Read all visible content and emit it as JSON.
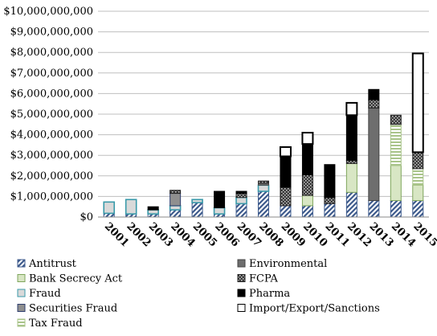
{
  "colors": {
    "antitrust": "#3d5a8c",
    "environmental": "#6e6e6e",
    "bank_secrecy_act": "#d8e6c4",
    "bank_secrecy_act_border": "#7fa65c",
    "fcpa": "#555555",
    "fraud": "#d9d9d9",
    "fraud_border": "#3a9aaa",
    "pharma": "#000000",
    "securities_fraud": "#8f8f8f",
    "securities_fraud_border": "#2f3f6f",
    "import_export_sanctions": "#ffffff",
    "tax_fraud": "#c8d8b4",
    "gridline": "#bfbfbf",
    "axis": "#888888"
  },
  "chart_data": {
    "type": "bar",
    "stacked": true,
    "categories": [
      "2001",
      "2002",
      "2003",
      "2004",
      "2005",
      "2006",
      "2007",
      "2008",
      "2009",
      "2010",
      "2011",
      "2012",
      "2013",
      "2014",
      "2015"
    ],
    "ylim": [
      0,
      10000000000
    ],
    "yticks": [
      0,
      1000000000,
      2000000000,
      3000000000,
      4000000000,
      5000000000,
      6000000000,
      7000000000,
      8000000000,
      9000000000,
      10000000000
    ],
    "ytick_labels": [
      "$0",
      "$1,000,000,000",
      "$2,000,000,000",
      "$3,000,000,000",
      "$4,000,000,000",
      "$5,000,000,000",
      "$6,000,000,000",
      "$7,000,000,000",
      "$8,000,000,000",
      "$9,000,000,000",
      "$10,000,000,000"
    ],
    "grid": true,
    "legend_position": "bottom",
    "series": [
      {
        "name": "Antitrust",
        "key": "antitrust",
        "values": [
          180000000,
          150000000,
          150000000,
          350000000,
          700000000,
          150000000,
          650000000,
          1250000000,
          550000000,
          550000000,
          650000000,
          1200000000,
          800000000,
          800000000,
          800000000
        ]
      },
      {
        "name": "Bank Secrecy Act",
        "key": "bank_secrecy_act",
        "values": [
          0,
          0,
          0,
          0,
          0,
          0,
          0,
          0,
          0,
          500000000,
          0,
          1400000000,
          0,
          1700000000,
          750000000
        ]
      },
      {
        "name": "Fraud",
        "key": "fraud",
        "values": [
          550000000,
          700000000,
          200000000,
          200000000,
          150000000,
          300000000,
          300000000,
          300000000,
          0,
          0,
          0,
          0,
          0,
          0,
          0
        ]
      },
      {
        "name": "Securities Fraud",
        "key": "securities_fraud",
        "values": [
          0,
          0,
          0,
          600000000,
          0,
          0,
          0,
          0,
          0,
          0,
          0,
          0,
          0,
          0,
          0
        ]
      },
      {
        "name": "Tax Fraud",
        "key": "tax_fraud",
        "values": [
          0,
          0,
          0,
          0,
          0,
          0,
          0,
          0,
          0,
          0,
          0,
          0,
          0,
          2000000000,
          800000000
        ]
      },
      {
        "name": "Environmental",
        "key": "environmental",
        "values": [
          0,
          0,
          0,
          0,
          0,
          0,
          0,
          100000000,
          0,
          0,
          0,
          0,
          4500000000,
          0,
          0
        ]
      },
      {
        "name": "FCPA",
        "key": "fcpa",
        "values": [
          0,
          0,
          0,
          150000000,
          0,
          0,
          200000000,
          100000000,
          900000000,
          1000000000,
          300000000,
          150000000,
          400000000,
          450000000,
          800000000
        ]
      },
      {
        "name": "Pharma",
        "key": "pharma",
        "values": [
          0,
          0,
          150000000,
          0,
          0,
          800000000,
          100000000,
          0,
          1500000000,
          1500000000,
          1600000000,
          2200000000,
          500000000,
          0,
          0
        ]
      },
      {
        "name": "Import/Export/Sanctions",
        "key": "import_export_sanctions",
        "values": [
          0,
          0,
          0,
          0,
          0,
          0,
          0,
          0,
          450000000,
          550000000,
          0,
          600000000,
          0,
          0,
          4800000000
        ]
      }
    ],
    "legend": [
      {
        "label": "Antitrust",
        "key": "antitrust"
      },
      {
        "label": "Environmental",
        "key": "environmental"
      },
      {
        "label": "Bank Secrecy Act",
        "key": "bank_secrecy_act"
      },
      {
        "label": "FCPA",
        "key": "fcpa"
      },
      {
        "label": "Fraud",
        "key": "fraud"
      },
      {
        "label": "Pharma",
        "key": "pharma"
      },
      {
        "label": "Securities Fraud",
        "key": "securities_fraud"
      },
      {
        "label": "Import/Export/Sanctions",
        "key": "import_export_sanctions"
      },
      {
        "label": "Tax Fraud",
        "key": "tax_fraud"
      }
    ]
  }
}
